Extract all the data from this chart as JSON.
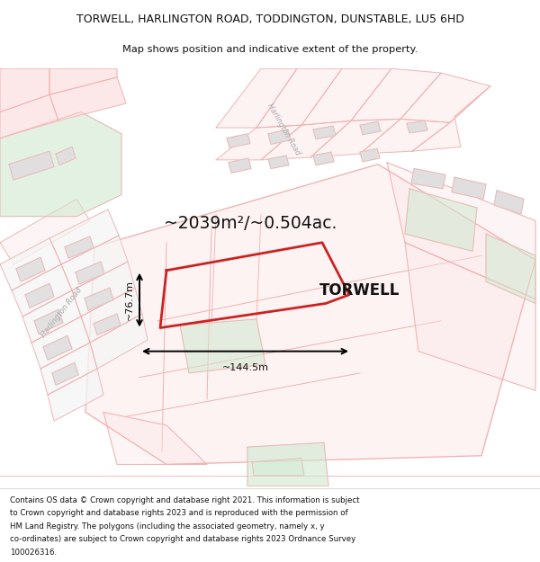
{
  "title_line1": "TORWELL, HARLINGTON ROAD, TODDINGTON, DUNSTABLE, LU5 6HD",
  "title_line2": "Map shows position and indicative extent of the property.",
  "area_text": "~2039m²/~0.504ac.",
  "width_text": "~144.5m",
  "height_text": "~76.7m",
  "property_label": "TORWELL",
  "footer_lines": [
    "Contains OS data © Crown copyright and database right 2021. This information is subject",
    "to Crown copyright and database rights 2023 and is reproduced with the permission of",
    "HM Land Registry. The polygons (including the associated geometry, namely x, y",
    "co-ordinates) are subject to Crown copyright and database rights 2023 Ordnance Survey",
    "100026316."
  ],
  "bg_white": "#ffffff",
  "map_bg": "#f9f7f7",
  "red_col": "#cc2222",
  "light_red": "#f0b0b0",
  "pink_fill": "#fce8e8",
  "green_fill": "#d0e8d0",
  "grey_fill": "#e0dede",
  "dim_col": "#111111",
  "road_col": "#aaaaaa"
}
